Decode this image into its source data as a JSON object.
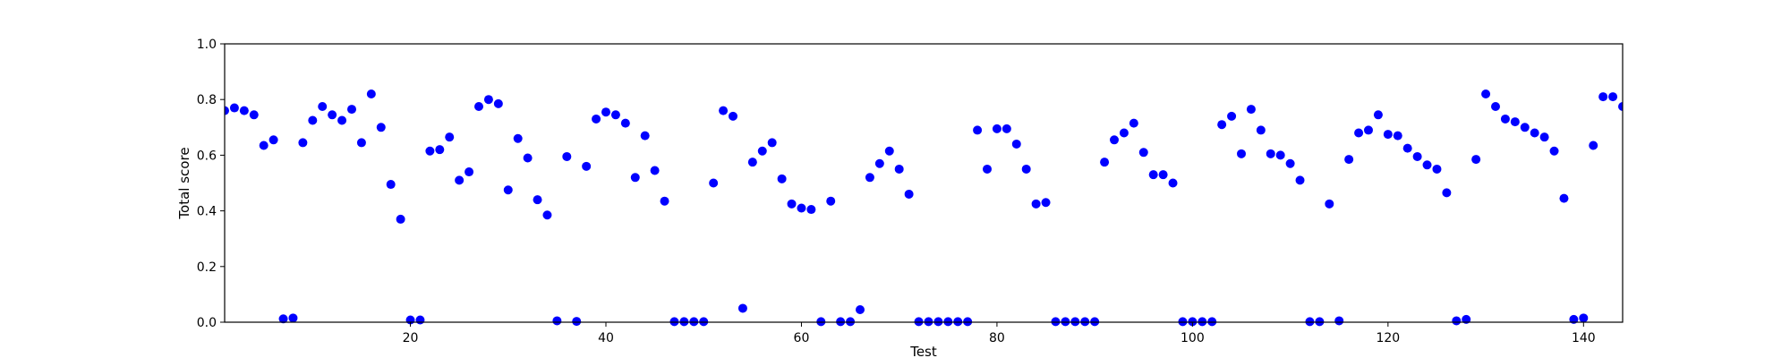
{
  "chart_data": {
    "type": "scatter",
    "title": "",
    "xlabel": "Test",
    "ylabel": "Total score",
    "xlim": [
      1,
      144
    ],
    "ylim": [
      0.0,
      1.0
    ],
    "x_ticks": [
      20,
      40,
      60,
      80,
      100,
      120,
      140
    ],
    "y_ticks": [
      0.0,
      0.2,
      0.4,
      0.6,
      0.8,
      1.0
    ],
    "x_tick_labels": [
      "20",
      "40",
      "60",
      "80",
      "100",
      "120",
      "140"
    ],
    "y_tick_labels": [
      "0.0",
      "0.2",
      "0.4",
      "0.6",
      "0.8",
      "1.0"
    ],
    "grid": false,
    "marker_color": "#0000ff",
    "x": [
      1,
      2,
      3,
      4,
      5,
      6,
      7,
      8,
      9,
      10,
      11,
      12,
      13,
      14,
      15,
      16,
      17,
      18,
      19,
      20,
      21,
      22,
      23,
      24,
      25,
      26,
      27,
      28,
      29,
      30,
      31,
      32,
      33,
      34,
      35,
      36,
      37,
      38,
      39,
      40,
      41,
      42,
      43,
      44,
      45,
      46,
      47,
      48,
      49,
      50,
      51,
      52,
      53,
      54,
      55,
      56,
      57,
      58,
      59,
      60,
      61,
      62,
      63,
      64,
      65,
      66,
      67,
      68,
      69,
      70,
      71,
      72,
      73,
      74,
      75,
      76,
      77,
      78,
      79,
      80,
      81,
      82,
      83,
      84,
      85,
      86,
      87,
      88,
      89,
      90,
      91,
      92,
      93,
      94,
      95,
      96,
      97,
      98,
      99,
      100,
      101,
      102,
      103,
      104,
      105,
      106,
      107,
      108,
      109,
      110,
      111,
      112,
      113,
      114,
      115,
      116,
      117,
      118,
      119,
      120,
      121,
      122,
      123,
      124,
      125,
      126,
      127,
      128,
      129,
      130,
      131,
      132,
      133,
      134,
      135,
      136,
      137,
      138,
      139,
      140,
      141,
      142,
      143,
      144
    ],
    "y": [
      0.76,
      0.77,
      0.76,
      0.745,
      0.635,
      0.655,
      0.012,
      0.015,
      0.645,
      0.725,
      0.775,
      0.745,
      0.725,
      0.765,
      0.645,
      0.82,
      0.7,
      0.495,
      0.37,
      0.008,
      0.008,
      0.615,
      0.62,
      0.665,
      0.51,
      0.54,
      0.775,
      0.8,
      0.785,
      0.475,
      0.66,
      0.59,
      0.44,
      0.385,
      0.005,
      0.595,
      0.003,
      0.56,
      0.73,
      0.755,
      0.745,
      0.715,
      0.52,
      0.67,
      0.545,
      0.435,
      0.002,
      0.002,
      0.002,
      0.002,
      0.5,
      0.76,
      0.74,
      0.05,
      0.575,
      0.615,
      0.645,
      0.515,
      0.425,
      0.41,
      0.405,
      0.002,
      0.435,
      0.002,
      0.002,
      0.045,
      0.52,
      0.57,
      0.615,
      0.55,
      0.46,
      0.002,
      0.002,
      0.002,
      0.002,
      0.002,
      0.002,
      0.69,
      0.55,
      0.695,
      0.695,
      0.64,
      0.55,
      0.425,
      0.43,
      0.002,
      0.002,
      0.002,
      0.002,
      0.002,
      0.575,
      0.655,
      0.68,
      0.715,
      0.61,
      0.53,
      0.53,
      0.5,
      0.002,
      0.002,
      0.002,
      0.002,
      0.71,
      0.74,
      0.605,
      0.765,
      0.69,
      0.605,
      0.6,
      0.57,
      0.51,
      0.002,
      0.002,
      0.425,
      0.005,
      0.585,
      0.68,
      0.69,
      0.745,
      0.675,
      0.67,
      0.625,
      0.595,
      0.565,
      0.55,
      0.465,
      0.005,
      0.01,
      0.585,
      0.82,
      0.775,
      0.73,
      0.72,
      0.7,
      0.68,
      0.665,
      0.615,
      0.445,
      0.01,
      0.015,
      0.635,
      0.81,
      0.81,
      0.775
    ]
  }
}
